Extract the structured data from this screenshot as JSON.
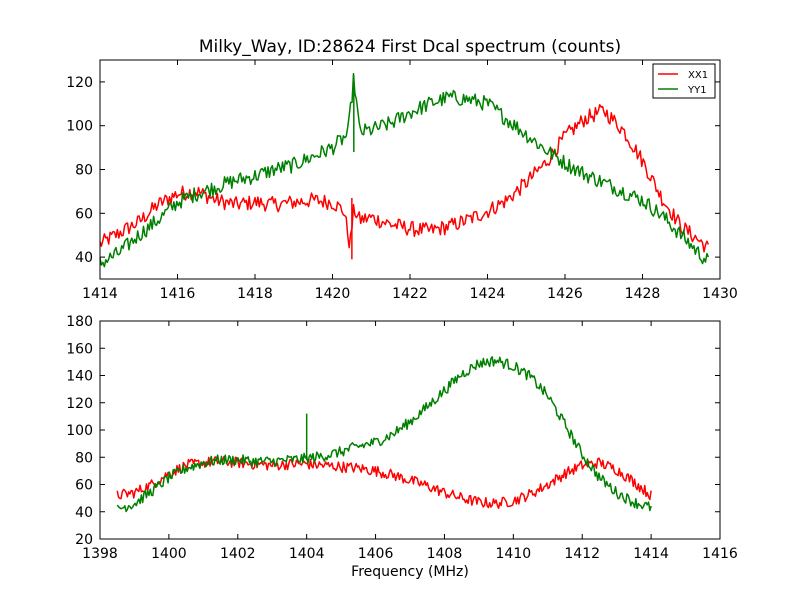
{
  "figure": {
    "title": "Milky_Way, ID:28624 First Dcal spectrum (counts)",
    "background": "#ffffff"
  },
  "chart_data": [
    {
      "type": "line",
      "title": "Milky_Way, ID:28624 First Dcal spectrum (counts)",
      "xlabel": "",
      "ylabel": "",
      "xlim": [
        1414,
        1430
      ],
      "ylim": [
        30,
        130
      ],
      "xticks": [
        1414,
        1416,
        1418,
        1420,
        1422,
        1424,
        1426,
        1428,
        1430
      ],
      "yticks": [
        40,
        60,
        80,
        100,
        120
      ],
      "grid": false,
      "legend": {
        "placement": "top-right",
        "entries": [
          "XX1",
          "YY1"
        ]
      },
      "series": [
        {
          "name": "XX1",
          "color": "#ff0000",
          "x": [
            1414.0,
            1414.5,
            1415.0,
            1415.5,
            1416.0,
            1416.5,
            1417.0,
            1417.5,
            1418.0,
            1418.5,
            1419.0,
            1419.5,
            1420.0,
            1420.3,
            1420.45,
            1420.55,
            1420.7,
            1421.0,
            1421.5,
            1422.0,
            1422.5,
            1423.0,
            1423.5,
            1424.0,
            1424.5,
            1425.0,
            1425.5,
            1426.0,
            1426.5,
            1427.0,
            1427.5,
            1428.0,
            1428.5,
            1429.0,
            1429.5,
            1429.7
          ],
          "y": [
            46,
            51,
            56,
            64,
            69,
            70,
            66,
            64,
            65,
            64,
            65,
            66,
            65,
            61,
            45,
            62,
            57,
            58,
            55,
            53,
            52,
            54,
            57,
            61,
            66,
            74,
            83,
            95,
            103,
            107,
            98,
            84,
            67,
            54,
            47,
            44
          ],
          "spikes": [
            {
              "x": 1420.5,
              "y_low": 39,
              "y_high": 67
            }
          ]
        },
        {
          "name": "YY1",
          "color": "#008000",
          "x": [
            1414.0,
            1414.5,
            1415.0,
            1415.5,
            1416.0,
            1416.5,
            1417.0,
            1417.5,
            1418.0,
            1418.5,
            1419.0,
            1419.5,
            1420.0,
            1420.4,
            1420.55,
            1420.7,
            1421.0,
            1421.5,
            1422.0,
            1422.5,
            1423.0,
            1423.5,
            1424.0,
            1424.5,
            1425.0,
            1425.5,
            1426.0,
            1426.5,
            1427.0,
            1427.5,
            1428.0,
            1428.5,
            1429.0,
            1429.5,
            1429.7
          ],
          "y": [
            37,
            42,
            50,
            57,
            65,
            69,
            72,
            75,
            77,
            80,
            82,
            86,
            90,
            96,
            122,
            97,
            98,
            101,
            106,
            110,
            113,
            112,
            110,
            103,
            96,
            89,
            83,
            78,
            74,
            70,
            66,
            59,
            50,
            41,
            38
          ],
          "spikes": [
            {
              "x": 1420.55,
              "y_low": 88,
              "y_high": 123
            }
          ]
        }
      ]
    },
    {
      "type": "line",
      "title": "",
      "xlabel": "Frequency (MHz)",
      "ylabel": "",
      "xlim": [
        1398,
        1416
      ],
      "ylim": [
        20,
        180
      ],
      "xticks": [
        1398,
        1400,
        1402,
        1404,
        1406,
        1408,
        1410,
        1412,
        1414,
        1416
      ],
      "yticks": [
        20,
        40,
        60,
        80,
        100,
        120,
        140,
        160,
        180
      ],
      "grid": false,
      "series": [
        {
          "name": "XX1",
          "color": "#ff0000",
          "x": [
            1398.5,
            1399.0,
            1399.5,
            1400.0,
            1400.5,
            1401.0,
            1401.5,
            1402.0,
            1402.5,
            1403.0,
            1403.5,
            1404.0,
            1404.5,
            1405.0,
            1405.5,
            1406.0,
            1406.5,
            1407.0,
            1407.5,
            1408.0,
            1408.5,
            1409.0,
            1409.5,
            1410.0,
            1410.5,
            1411.0,
            1411.5,
            1412.0,
            1412.5,
            1413.0,
            1413.5,
            1414.0
          ],
          "y": [
            52,
            54,
            60,
            68,
            74,
            76,
            77,
            76,
            75,
            74,
            75,
            75,
            74,
            73,
            72,
            70,
            67,
            63,
            59,
            54,
            50,
            47,
            46,
            48,
            53,
            60,
            68,
            74,
            76,
            71,
            62,
            52
          ],
          "spikes": []
        },
        {
          "name": "YY1",
          "color": "#008000",
          "x": [
            1398.5,
            1399.0,
            1399.5,
            1400.0,
            1400.5,
            1401.0,
            1401.5,
            1402.0,
            1402.5,
            1403.0,
            1403.5,
            1404.0,
            1404.5,
            1405.0,
            1405.5,
            1406.0,
            1406.5,
            1407.0,
            1407.5,
            1408.0,
            1408.5,
            1409.0,
            1409.5,
            1410.0,
            1410.5,
            1411.0,
            1411.5,
            1412.0,
            1412.5,
            1413.0,
            1413.5,
            1414.0
          ],
          "y": [
            42,
            46,
            55,
            65,
            72,
            76,
            78,
            78,
            77,
            77,
            78,
            79,
            81,
            84,
            88,
            91,
            97,
            106,
            117,
            129,
            141,
            149,
            151,
            147,
            139,
            125,
            104,
            82,
            65,
            54,
            47,
            43
          ],
          "spikes": [
            {
              "x": 1404.0,
              "y_low": 78,
              "y_high": 112
            }
          ]
        }
      ]
    }
  ]
}
